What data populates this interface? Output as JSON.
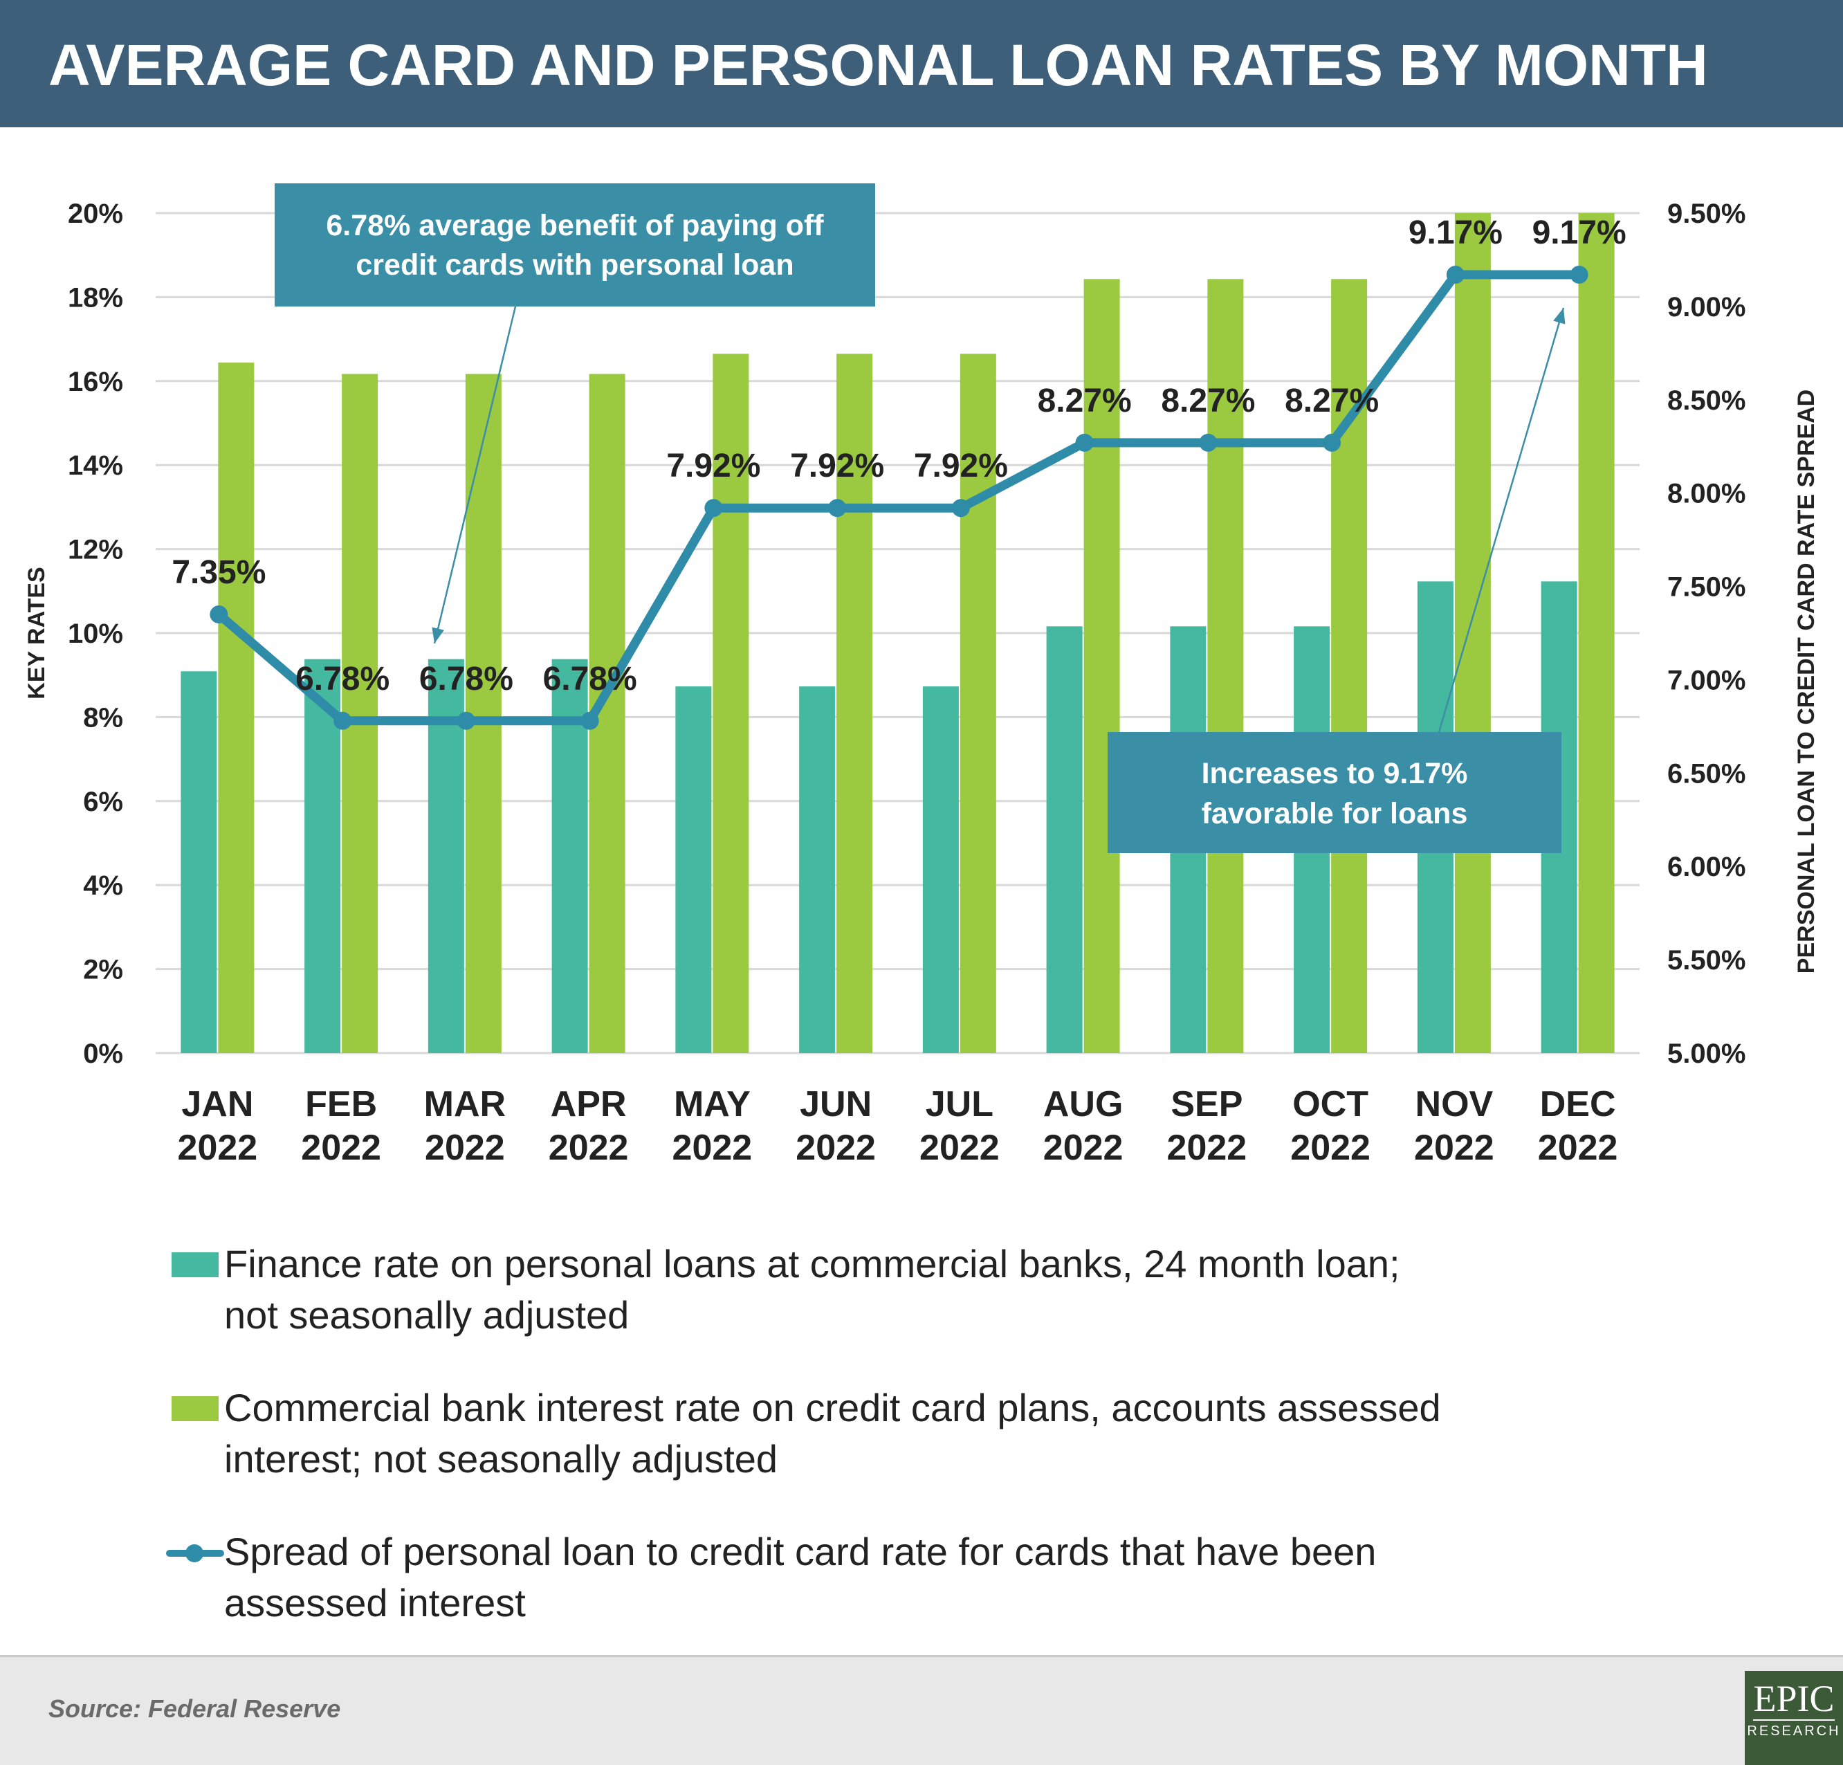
{
  "title": "AVERAGE CARD AND PERSONAL LOAN RATES BY MONTH",
  "colors": {
    "header_bg": "#3d5f79",
    "personal_loan": "#45b8a0",
    "credit_card": "#9bc940",
    "spread": "#2f8ca8",
    "callout_bg": "#3a8ea6",
    "grid": "#d8d8d8"
  },
  "chart_data": {
    "type": "bar",
    "categories": [
      "JAN 2022",
      "FEB 2022",
      "MAR 2022",
      "APR 2022",
      "MAY 2022",
      "JUN 2022",
      "JUL 2022",
      "AUG 2022",
      "SEP 2022",
      "OCT 2022",
      "NOV 2022",
      "DEC 2022"
    ],
    "category_lines": [
      [
        "JAN",
        "2022"
      ],
      [
        "FEB",
        "2022"
      ],
      [
        "MAR",
        "2022"
      ],
      [
        "APR",
        "2022"
      ],
      [
        "MAY",
        "2022"
      ],
      [
        "JUN",
        "2022"
      ],
      [
        "JUL",
        "2022"
      ],
      [
        "AUG",
        "2022"
      ],
      [
        "SEP",
        "2022"
      ],
      [
        "OCT",
        "2022"
      ],
      [
        "NOV",
        "2022"
      ],
      [
        "DEC",
        "2022"
      ]
    ],
    "ylabel": "KEY RATES",
    "y2label": "PERSONAL LOAN TO CREDIT CARD RATE SPREAD",
    "ylim": [
      0,
      20
    ],
    "y2lim": [
      5,
      9.5
    ],
    "yticks": [
      "0%",
      "2%",
      "4%",
      "6%",
      "8%",
      "10%",
      "12%",
      "14%",
      "16%",
      "18%",
      "20%"
    ],
    "y2ticks": [
      "5.00%",
      "5.50%",
      "6.00%",
      "6.50%",
      "7.00%",
      "7.50%",
      "8.00%",
      "8.50%",
      "9.00%",
      "9.50%"
    ],
    "grid": true,
    "series": [
      {
        "name": "Finance rate on personal loans at commercial banks, 24 month loan; not seasonally adjusted",
        "type": "bar",
        "axis": "left",
        "values": [
          9.09,
          9.38,
          9.38,
          9.38,
          8.73,
          8.73,
          8.73,
          10.16,
          10.16,
          10.16,
          11.23,
          11.23
        ]
      },
      {
        "name": "Commercial bank interest rate on credit card plans, accounts assessed interest; not seasonally adjusted",
        "type": "bar",
        "axis": "right_of_left",
        "values": [
          16.44,
          16.17,
          16.17,
          16.17,
          16.65,
          16.65,
          16.65,
          18.43,
          18.43,
          18.43,
          20.4,
          20.4
        ]
      },
      {
        "name": "Spread of personal loan to credit card rate for cards that have been assessed interest",
        "type": "line",
        "axis": "right",
        "values": [
          7.35,
          6.78,
          6.78,
          6.78,
          7.92,
          7.92,
          7.92,
          8.27,
          8.27,
          8.27,
          9.17,
          9.17
        ],
        "labels": [
          "7.35%",
          "6.78%",
          "6.78%",
          "6.78%",
          "7.92%",
          "7.92%",
          "7.92%",
          "8.27%",
          "8.27%",
          "8.27%",
          "9.17%",
          "9.17%"
        ]
      }
    ],
    "annotations": [
      {
        "lines": [
          "6.78% average benefit of paying off",
          "credit cards with personal loan"
        ],
        "points_to": "MAR 2022"
      },
      {
        "lines": [
          "Increases to 9.17%",
          "favorable for loans"
        ],
        "points_to": "DEC 2022"
      }
    ],
    "legend_placement": "bottom"
  },
  "legend": {
    "items": [
      {
        "lines": [
          "Finance rate on personal loans at commercial banks, 24 month loan;",
          "not seasonally adjusted"
        ]
      },
      {
        "lines": [
          "Commercial bank interest rate on credit card plans, accounts assessed",
          "interest; not seasonally adjusted"
        ]
      },
      {
        "lines": [
          "Spread of personal loan to credit card rate for cards that have been",
          "assessed interest"
        ]
      }
    ]
  },
  "footer": {
    "source": "Source: Federal Reserve",
    "logo_top": "EPIC",
    "logo_bottom": "RESEARCH"
  }
}
